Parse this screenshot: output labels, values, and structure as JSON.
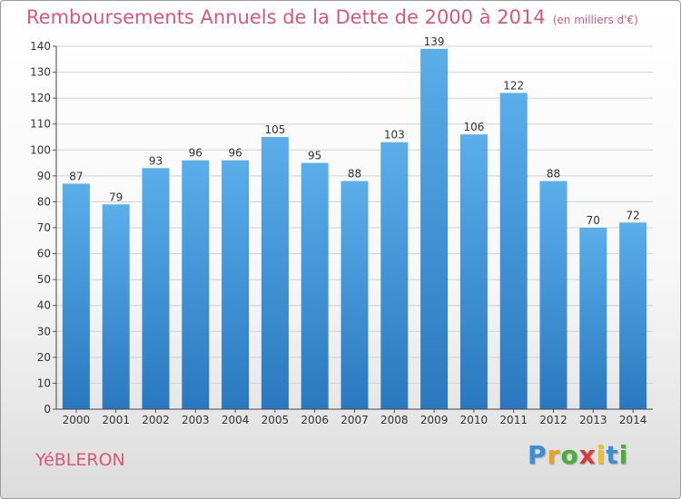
{
  "header": {
    "title": "Remboursements Annuels de la Dette de 2000 à 2014",
    "unit": "(en milliers d'€)"
  },
  "footer": {
    "town": "YéBLERON",
    "logo_letters": [
      "P",
      "r",
      "o",
      "x",
      "i",
      "t",
      "i"
    ],
    "logo_colors": [
      "#3a8fd6",
      "#f0a020",
      "#4cae3a",
      "#d93a3a",
      "#f0c020",
      "#3a8fd6",
      "#4cae3a"
    ]
  },
  "colors": {
    "bar_top": "#5aaeea",
    "bar_bottom": "#2a78bf",
    "title": "#d9577a"
  },
  "chart_data": {
    "type": "bar",
    "title": "Remboursements Annuels de la Dette de 2000 à 2014",
    "xlabel": "",
    "ylabel": "",
    "ylim": [
      0,
      140
    ],
    "yticks": [
      0,
      10,
      20,
      30,
      40,
      50,
      60,
      70,
      80,
      90,
      100,
      110,
      120,
      130,
      140
    ],
    "grid": true,
    "categories": [
      "2000",
      "2001",
      "2002",
      "2003",
      "2004",
      "2005",
      "2006",
      "2007",
      "2008",
      "2009",
      "2010",
      "2011",
      "2012",
      "2013",
      "2014"
    ],
    "values": [
      87,
      79,
      93,
      96,
      96,
      105,
      95,
      88,
      103,
      139,
      106,
      122,
      88,
      70,
      72
    ]
  }
}
